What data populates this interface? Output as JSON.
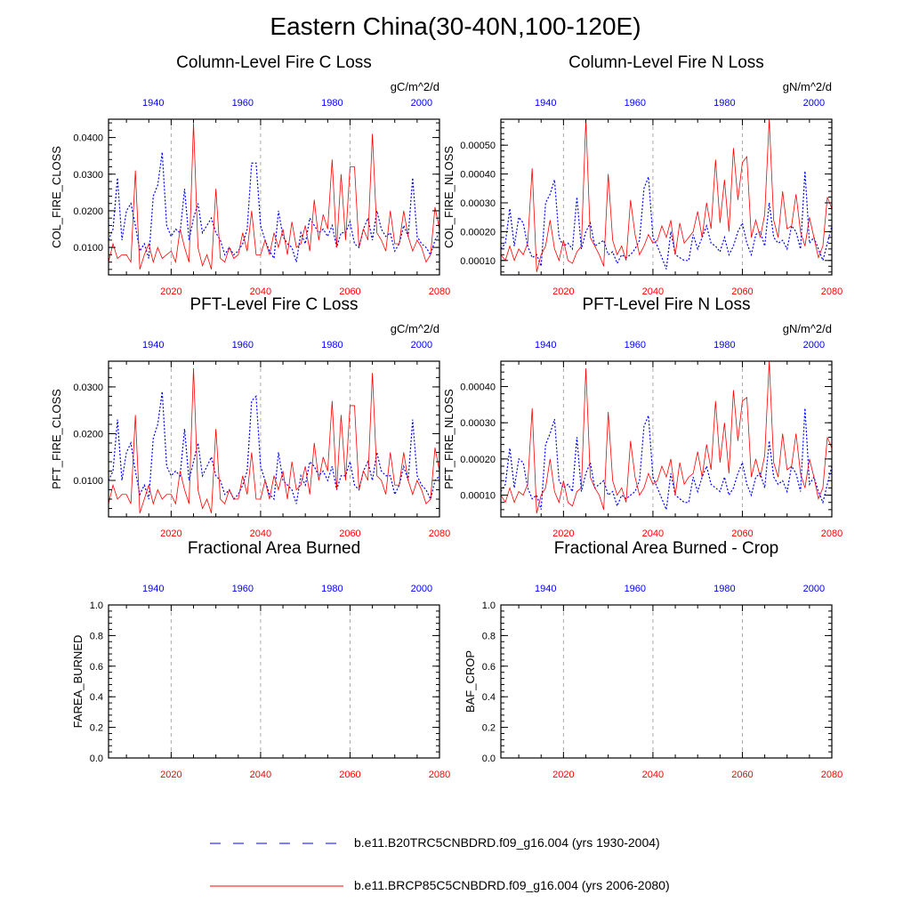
{
  "title": "Eastern China(30-40N,100-120E)",
  "colors": {
    "hist": "#0000ff",
    "future": "#ff0000",
    "grid": "#aaaaaa"
  },
  "legend": {
    "items": [
      {
        "label": "b.e11.B20TRC5CNBDRD.f09_g16.004 (yrs 1930-2004)",
        "style": "dash",
        "color": "#0000ff"
      },
      {
        "label": "b.e11.BRCP85C5CNBDRD.f09_g16.004 (yrs 2006-2080)",
        "style": "solid",
        "color": "#ff0000"
      }
    ]
  },
  "chart_data": [
    {
      "type": "line",
      "title": "Column-Level Fire C Loss",
      "units": "gC/m^2/d",
      "ylabel": "COL_FIRE_CLOSS",
      "xlim_bottom": [
        2006,
        2080
      ],
      "xlim_top": [
        1930,
        2004
      ],
      "bottom_ticks": [
        "2020",
        "2040",
        "2060",
        "2080"
      ],
      "top_ticks": [
        "1940",
        "1960",
        "1980",
        "2000"
      ],
      "ylim": [
        0.0025,
        0.045
      ],
      "yticks": [
        0.01,
        0.02,
        0.03,
        0.04
      ],
      "ytick_labels": [
        "0.0100",
        "0.0200",
        "0.0300",
        "0.0400"
      ],
      "grid_x": [
        2020,
        2040,
        2060
      ],
      "series": [
        {
          "name": "b.e11.B20TRC5CNBDRD.f09_g16.004 (yrs 1930-2004)",
          "axis": "top",
          "style": "dash",
          "x_start": 1930,
          "x_step": 1,
          "y": [
            0.012,
            0.015,
            0.029,
            0.012,
            0.02,
            0.022,
            0.016,
            0.009,
            0.011,
            0.007,
            0.024,
            0.027,
            0.036,
            0.016,
            0.013,
            0.015,
            0.014,
            0.026,
            0.012,
            0.018,
            0.022,
            0.014,
            0.016,
            0.018,
            0.014,
            0.012,
            0.008,
            0.01,
            0.008,
            0.009,
            0.011,
            0.015,
            0.033,
            0.033,
            0.016,
            0.012,
            0.009,
            0.007,
            0.02,
            0.013,
            0.011,
            0.01,
            0.006,
            0.014,
            0.011,
            0.018,
            0.016,
            0.014,
            0.015,
            0.013,
            0.016,
            0.01,
            0.014,
            0.014,
            0.017,
            0.011,
            0.01,
            0.015,
            0.018,
            0.012,
            0.02,
            0.015,
            0.013,
            0.014,
            0.009,
            0.011,
            0.016,
            0.013,
            0.029,
            0.013,
            0.011,
            0.01,
            0.008,
            0.012,
            0.014
          ]
        },
        {
          "name": "b.e11.BRCP85C5CNBDRD.f09_g16.004 (yrs 2006-2080)",
          "axis": "bottom",
          "style": "solid",
          "x_start": 2006,
          "x_step": 1,
          "y": [
            0.006,
            0.011,
            0.007,
            0.008,
            0.008,
            0.006,
            0.031,
            0.004,
            0.008,
            0.011,
            0.006,
            0.01,
            0.007,
            0.008,
            0.009,
            0.006,
            0.015,
            0.01,
            0.006,
            0.044,
            0.01,
            0.005,
            0.008,
            0.004,
            0.026,
            0.007,
            0.006,
            0.01,
            0.007,
            0.008,
            0.014,
            0.009,
            0.02,
            0.008,
            0.008,
            0.012,
            0.008,
            0.014,
            0.01,
            0.015,
            0.008,
            0.017,
            0.01,
            0.011,
            0.016,
            0.009,
            0.023,
            0.012,
            0.019,
            0.015,
            0.034,
            0.01,
            0.03,
            0.012,
            0.032,
            0.032,
            0.01,
            0.015,
            0.012,
            0.041,
            0.014,
            0.012,
            0.009,
            0.02,
            0.011,
            0.011,
            0.02,
            0.013,
            0.009,
            0.012,
            0.01,
            0.006,
            0.008,
            0.021,
            0.015
          ]
        }
      ]
    },
    {
      "type": "line",
      "title": "Column-Level Fire N Loss",
      "units": "gN/m^2/d",
      "ylabel": "COL_FIRE_NLOSS",
      "xlim_bottom": [
        2006,
        2080
      ],
      "xlim_top": [
        1930,
        2004
      ],
      "bottom_ticks": [
        "2020",
        "2040",
        "2060",
        "2080"
      ],
      "top_ticks": [
        "1940",
        "1960",
        "1980",
        "2000"
      ],
      "ylim": [
        5e-05,
        0.00059
      ],
      "yticks": [
        0.0001,
        0.0002,
        0.0003,
        0.0004,
        0.0005
      ],
      "ytick_labels": [
        "0.00010",
        "0.00020",
        "0.00030",
        "0.00040",
        "0.00050"
      ],
      "grid_x": [
        2020,
        2040,
        2060
      ],
      "series": [
        {
          "name": "b.e11.B20TRC5CNBDRD.f09_g16.004 (yrs 1930-2004)",
          "axis": "top",
          "style": "dash",
          "x_start": 1930,
          "x_step": 1,
          "y": [
            0.00014,
            0.00016,
            0.00028,
            0.00015,
            0.00025,
            0.00023,
            0.00015,
            0.00011,
            0.00012,
            8e-05,
            0.0003,
            0.00033,
            0.00038,
            0.00018,
            0.00015,
            0.00016,
            0.00014,
            0.00032,
            0.00014,
            0.0002,
            0.00023,
            0.00015,
            0.00016,
            0.00017,
            0.00012,
            0.00013,
            9e-05,
            0.00012,
            0.00011,
            0.00012,
            0.00014,
            0.00017,
            0.00035,
            0.00039,
            0.00018,
            0.00015,
            0.00011,
            7e-05,
            0.0002,
            0.00012,
            0.00011,
            0.0001,
            0.0001,
            0.00019,
            0.00014,
            0.00018,
            0.00022,
            0.00016,
            0.00015,
            0.00013,
            0.00018,
            0.00012,
            0.00015,
            0.0002,
            0.00023,
            0.00016,
            0.00012,
            0.00019,
            0.0002,
            0.00015,
            0.0003,
            0.00018,
            0.00016,
            0.00017,
            0.00014,
            0.00022,
            0.0002,
            0.00014,
            0.00041,
            0.00016,
            0.00018,
            0.00014,
            0.0001,
            0.00016,
            0.00022
          ]
        },
        {
          "name": "b.e11.BRCP85C5CNBDRD.f09_g16.004 (yrs 2006-2080)",
          "axis": "bottom",
          "style": "solid",
          "x_start": 2006,
          "x_step": 1,
          "y": [
            0.00012,
            0.0001,
            0.00015,
            0.0001,
            0.00014,
            0.00012,
            0.00016,
            0.00042,
            6e-05,
            0.00012,
            0.00015,
            0.00024,
            0.00014,
            0.0001,
            0.00017,
            0.0001,
            9e-05,
            0.00013,
            0.00015,
            0.00059,
            0.00018,
            0.00015,
            0.00012,
            8e-05,
            0.0004,
            0.00017,
            0.00012,
            0.00015,
            0.0001,
            0.00031,
            0.00019,
            0.00012,
            0.00015,
            0.00019,
            0.00016,
            0.00017,
            0.00022,
            0.00018,
            0.00024,
            0.00012,
            0.00023,
            0.00016,
            0.00018,
            0.0002,
            0.00027,
            0.00018,
            0.0003,
            0.00021,
            0.00045,
            0.00023,
            0.00038,
            0.0002,
            0.00049,
            0.00031,
            0.00044,
            0.00046,
            0.00018,
            0.00024,
            0.00018,
            0.00026,
            0.00059,
            0.00024,
            0.00018,
            0.00034,
            0.00021,
            0.00022,
            0.00033,
            0.0002,
            0.00015,
            0.00025,
            0.00018,
            0.00011,
            0.00015,
            0.00032,
            0.00028
          ]
        }
      ]
    },
    {
      "type": "line",
      "title": "PFT-Level Fire C Loss",
      "units": "gC/m^2/d",
      "ylabel": "PFT_FIRE_CLOSS",
      "xlim_bottom": [
        2006,
        2080
      ],
      "xlim_top": [
        1930,
        2004
      ],
      "bottom_ticks": [
        "2020",
        "2040",
        "2060",
        "2080"
      ],
      "top_ticks": [
        "1940",
        "1960",
        "1980",
        "2000"
      ],
      "ylim": [
        0.0022,
        0.0355
      ],
      "yticks": [
        0.01,
        0.02,
        0.03
      ],
      "ytick_labels": [
        "0.0100",
        "0.0200",
        "0.0300"
      ],
      "grid_x": [
        2020,
        2040,
        2060
      ],
      "series": [
        {
          "name": "b.e11.B20TRC5CNBDRD.f09_g16.004 (yrs 1930-2004)",
          "axis": "top",
          "style": "dash",
          "x_start": 1930,
          "x_step": 1,
          "y": [
            0.01,
            0.012,
            0.023,
            0.01,
            0.016,
            0.018,
            0.012,
            0.007,
            0.009,
            0.006,
            0.019,
            0.022,
            0.029,
            0.013,
            0.011,
            0.012,
            0.011,
            0.021,
            0.01,
            0.014,
            0.018,
            0.011,
            0.013,
            0.015,
            0.011,
            0.01,
            0.007,
            0.008,
            0.006,
            0.007,
            0.009,
            0.012,
            0.027,
            0.028,
            0.013,
            0.01,
            0.007,
            0.006,
            0.016,
            0.01,
            0.009,
            0.008,
            0.005,
            0.011,
            0.009,
            0.014,
            0.013,
            0.011,
            0.012,
            0.01,
            0.013,
            0.008,
            0.011,
            0.011,
            0.014,
            0.009,
            0.008,
            0.012,
            0.014,
            0.01,
            0.016,
            0.012,
            0.011,
            0.011,
            0.007,
            0.009,
            0.013,
            0.01,
            0.023,
            0.011,
            0.009,
            0.008,
            0.006,
            0.01,
            0.011
          ]
        },
        {
          "name": "b.e11.BRCP85C5CNBDRD.f09_g16.004 (yrs 2006-2080)",
          "axis": "bottom",
          "style": "solid",
          "x_start": 2006,
          "x_step": 1,
          "y": [
            0.005,
            0.009,
            0.006,
            0.007,
            0.007,
            0.005,
            0.024,
            0.003,
            0.006,
            0.009,
            0.005,
            0.008,
            0.006,
            0.007,
            0.007,
            0.005,
            0.012,
            0.008,
            0.005,
            0.034,
            0.008,
            0.004,
            0.006,
            0.003,
            0.021,
            0.006,
            0.005,
            0.008,
            0.006,
            0.006,
            0.011,
            0.007,
            0.016,
            0.006,
            0.006,
            0.01,
            0.006,
            0.011,
            0.008,
            0.012,
            0.006,
            0.014,
            0.008,
            0.009,
            0.013,
            0.007,
            0.018,
            0.01,
            0.015,
            0.012,
            0.027,
            0.008,
            0.024,
            0.01,
            0.026,
            0.026,
            0.008,
            0.012,
            0.01,
            0.033,
            0.011,
            0.01,
            0.007,
            0.016,
            0.009,
            0.009,
            0.016,
            0.01,
            0.007,
            0.01,
            0.008,
            0.005,
            0.006,
            0.017,
            0.012
          ]
        }
      ]
    },
    {
      "type": "line",
      "title": "PFT-Level Fire N Loss",
      "units": "gN/m^2/d",
      "ylabel": "PFT_FIRE_NLOSS",
      "xlim_bottom": [
        2006,
        2080
      ],
      "xlim_top": [
        1930,
        2004
      ],
      "bottom_ticks": [
        "2020",
        "2040",
        "2060",
        "2080"
      ],
      "top_ticks": [
        "1940",
        "1960",
        "1980",
        "2000"
      ],
      "ylim": [
        4e-05,
        0.00047
      ],
      "yticks": [
        0.0001,
        0.0002,
        0.0003,
        0.0004
      ],
      "ytick_labels": [
        "0.00010",
        "0.00020",
        "0.00030",
        "0.00040"
      ],
      "grid_x": [
        2020,
        2040,
        2060
      ],
      "series": [
        {
          "name": "b.e11.B20TRC5CNBDRD.f09_g16.004 (yrs 1930-2004)",
          "axis": "top",
          "style": "dash",
          "x_start": 1930,
          "x_step": 1,
          "y": [
            0.00011,
            0.00013,
            0.00023,
            0.00012,
            0.0002,
            0.00019,
            0.00012,
            9e-05,
            0.0001,
            6e-05,
            0.00024,
            0.00027,
            0.00031,
            0.00014,
            0.00012,
            0.00013,
            0.00011,
            0.00026,
            0.00011,
            0.00016,
            0.00019,
            0.00012,
            0.00013,
            0.00014,
            0.0001,
            0.00011,
            7e-05,
            0.0001,
            9e-05,
            0.0001,
            0.00011,
            0.00014,
            0.00029,
            0.00032,
            0.00015,
            0.00012,
            9e-05,
            6e-05,
            0.00016,
            0.0001,
            9e-05,
            8e-05,
            8e-05,
            0.00015,
            0.00011,
            0.00015,
            0.00018,
            0.00013,
            0.00012,
            0.00011,
            0.00015,
            0.0001,
            0.00012,
            0.00016,
            0.00019,
            0.00013,
            0.0001,
            0.00015,
            0.00016,
            0.00012,
            0.00025,
            0.00015,
            0.00013,
            0.00014,
            0.00011,
            0.00018,
            0.00016,
            0.00011,
            0.00034,
            0.00013,
            0.00015,
            0.00011,
            8e-05,
            0.00013,
            0.00018
          ]
        },
        {
          "name": "b.e11.BRCP85C5CNBDRD.f09_g16.004 (yrs 2006-2080)",
          "axis": "bottom",
          "style": "solid",
          "x_start": 2006,
          "x_step": 1,
          "y": [
            0.0001,
            8e-05,
            0.00012,
            8e-05,
            0.00011,
            0.0001,
            0.00013,
            0.00034,
            5e-05,
            0.0001,
            0.00012,
            0.0002,
            0.00011,
            8e-05,
            0.00014,
            8e-05,
            7e-05,
            0.00011,
            0.00012,
            0.00045,
            0.00015,
            0.00012,
            0.0001,
            6e-05,
            0.00033,
            0.00014,
            0.0001,
            0.00012,
            8e-05,
            0.00025,
            0.00015,
            0.0001,
            0.00012,
            0.00016,
            0.00013,
            0.00014,
            0.00018,
            0.00015,
            0.0002,
            0.0001,
            0.00019,
            0.00013,
            0.00015,
            0.00016,
            0.00022,
            0.00015,
            0.00024,
            0.00017,
            0.00036,
            0.00019,
            0.0003,
            0.00016,
            0.00039,
            0.00025,
            0.00036,
            0.00037,
            0.00015,
            0.0002,
            0.00015,
            0.00021,
            0.00047,
            0.00019,
            0.00015,
            0.00027,
            0.00017,
            0.00018,
            0.00027,
            0.00016,
            0.00012,
            0.0002,
            0.00015,
            9e-05,
            0.00012,
            0.00026,
            0.00023
          ]
        }
      ]
    },
    {
      "type": "line",
      "title": "Fractional Area Burned",
      "units": "",
      "ylabel": "FAREA_BURNED",
      "xlim_bottom": [
        2006,
        2080
      ],
      "xlim_top": [
        1930,
        2004
      ],
      "bottom_ticks": [
        "2020",
        "2040",
        "2060",
        "2080"
      ],
      "top_ticks": [
        "1940",
        "1960",
        "1980",
        "2000"
      ],
      "ylim": [
        0.0,
        1.0
      ],
      "yticks": [
        0.0,
        0.2,
        0.4,
        0.6,
        0.8,
        1.0
      ],
      "ytick_labels": [
        "0.0",
        "0.2",
        "0.4",
        "0.6",
        "0.8",
        "1.0"
      ],
      "grid_x": [
        2020,
        2040,
        2060
      ],
      "series": []
    },
    {
      "type": "line",
      "title": "Fractional Area Burned - Crop",
      "units": "",
      "ylabel": "BAF_CROP",
      "xlim_bottom": [
        2006,
        2080
      ],
      "xlim_top": [
        1930,
        2004
      ],
      "bottom_ticks": [
        "2020",
        "2040",
        "2060",
        "2080"
      ],
      "top_ticks": [
        "1940",
        "1960",
        "1980",
        "2000"
      ],
      "ylim": [
        0.0,
        1.0
      ],
      "yticks": [
        0.0,
        0.2,
        0.4,
        0.6,
        0.8,
        1.0
      ],
      "ytick_labels": [
        "0.0",
        "0.2",
        "0.4",
        "0.6",
        "0.8",
        "1.0"
      ],
      "grid_x": [
        2020,
        2040,
        2060
      ],
      "series": []
    }
  ]
}
